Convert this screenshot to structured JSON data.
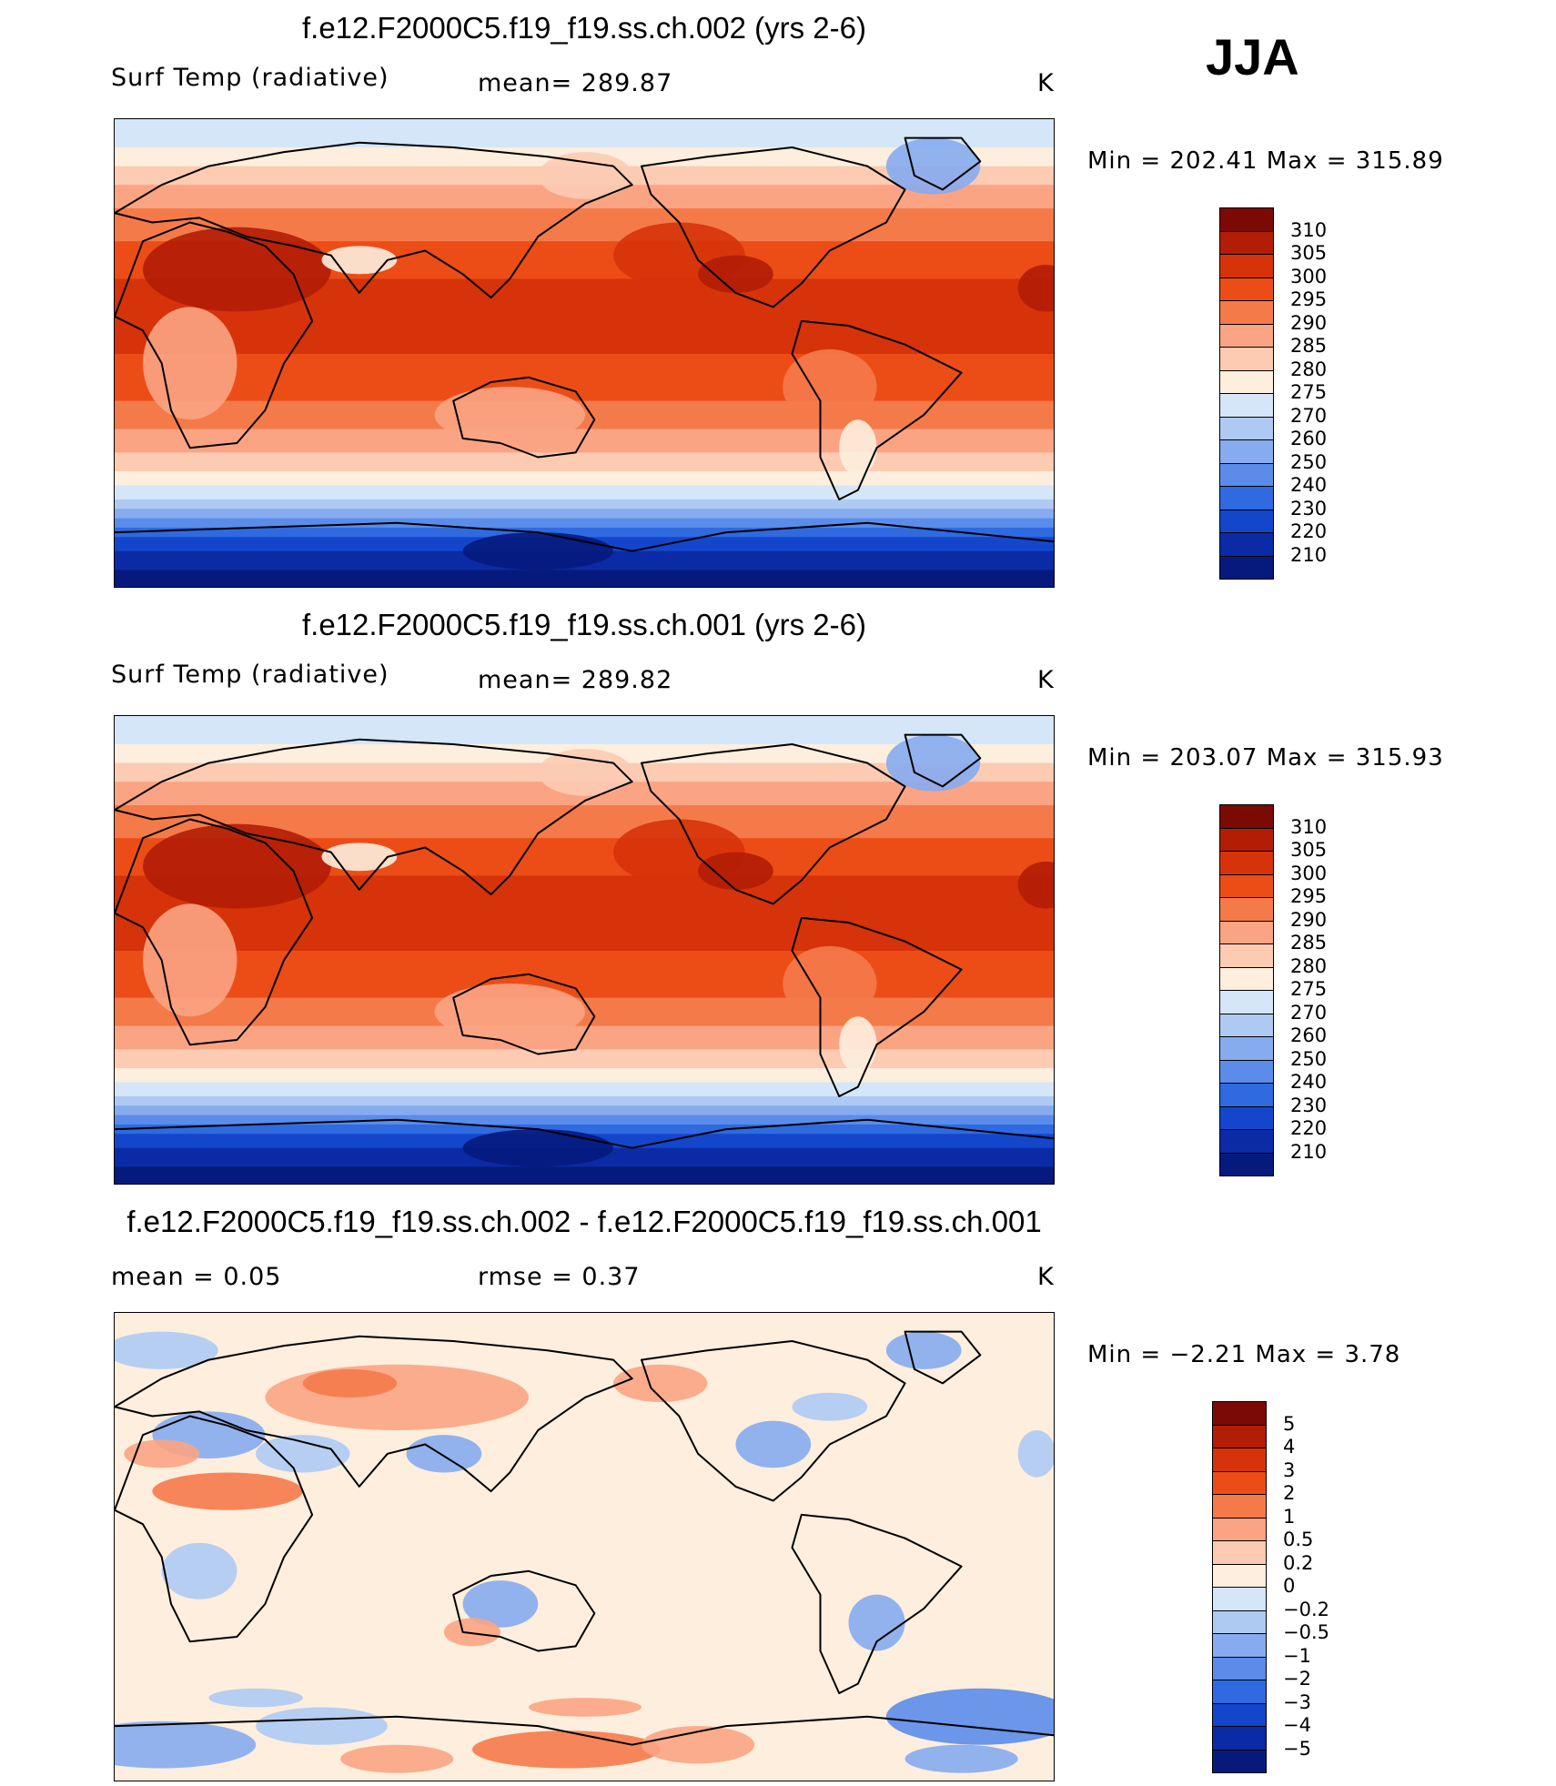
{
  "season": "JJA",
  "panels": [
    {
      "id": "case1",
      "title": "f.e12.F2000C5.f19_f19.ss.ch.002 (yrs 2-6)",
      "left_label": "Surf Temp (radiative)",
      "mid_label": "mean=  289.87",
      "units": "K",
      "minmax": "Min  =  202.41  Max  =  315.89"
    },
    {
      "id": "case2",
      "title": "f.e12.F2000C5.f19_f19.ss.ch.001 (yrs 2-6)",
      "left_label": "Surf Temp (radiative)",
      "mid_label": "mean=  289.82",
      "units": "K",
      "minmax": "Min  =  203.07  Max  =  315.93"
    },
    {
      "id": "diff",
      "title": "f.e12.F2000C5.f19_f19.ss.ch.002 - f.e12.F2000C5.f19_f19.ss.ch.001",
      "left_label": "mean =     0.05",
      "mid_label": "rmse =     0.37",
      "units": "K",
      "minmax": "Min  =    −2.21  Max  =      3.78"
    }
  ],
  "colorbar_abs": {
    "labels": [
      "310",
      "305",
      "300",
      "295",
      "290",
      "285",
      "280",
      "275",
      "270",
      "260",
      "250",
      "240",
      "230",
      "220",
      "210"
    ],
    "colors": [
      "#7b0a05",
      "#b21d06",
      "#d6330a",
      "#ec4d17",
      "#f57a4a",
      "#fba483",
      "#fccbb2",
      "#fdeedd",
      "#d4e6f8",
      "#aecaf3",
      "#86abef",
      "#5b8cea",
      "#2f6ae0",
      "#1446cc",
      "#0a2ba5",
      "#061a7e"
    ]
  },
  "colorbar_diff": {
    "labels": [
      "5",
      "4",
      "3",
      "2",
      "1",
      "0.5",
      "0.2",
      "0",
      "−0.2",
      "−0.5",
      "−1",
      "−2",
      "−3",
      "−4",
      "−5"
    ],
    "colors": [
      "#7b0a05",
      "#b21d06",
      "#d6330a",
      "#ec4d17",
      "#f57a4a",
      "#fba483",
      "#fccbb2",
      "#fdeedd",
      "#d4e6f8",
      "#aecaf3",
      "#86abef",
      "#5b8cea",
      "#2f6ae0",
      "#1446cc",
      "#0a2ba5",
      "#061a7e"
    ]
  }
}
